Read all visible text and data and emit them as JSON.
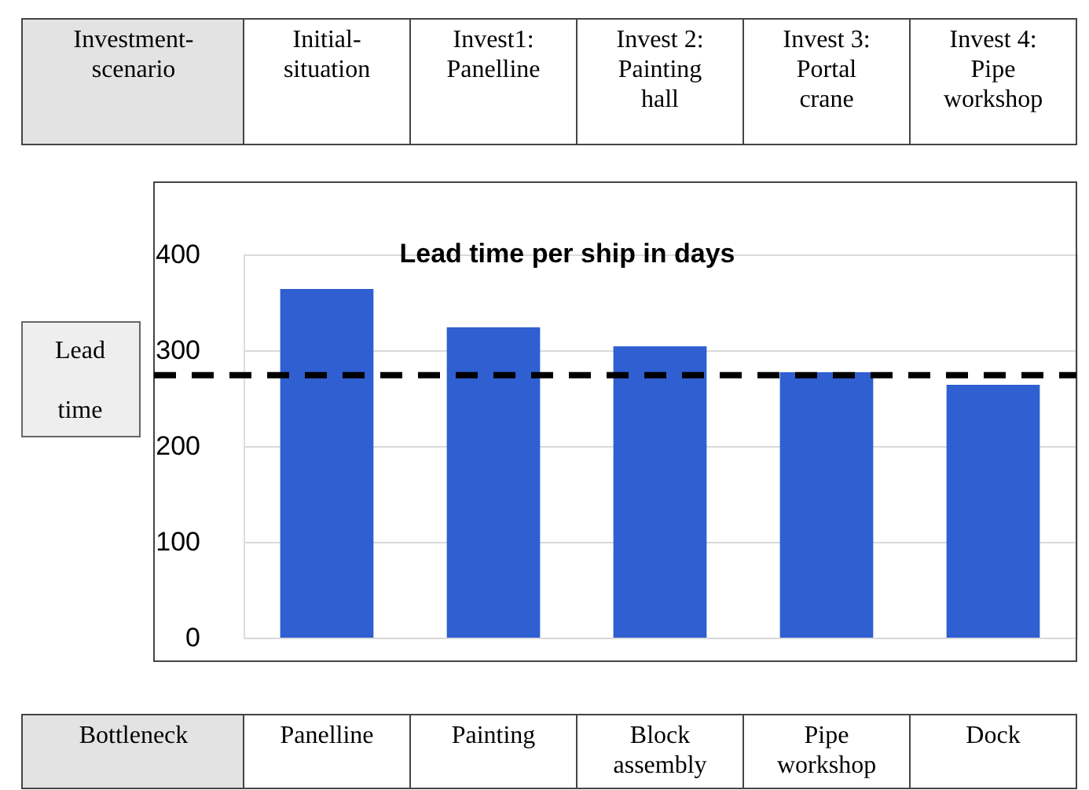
{
  "chart_data": {
    "type": "bar",
    "title": "Lead time per ship in days",
    "xlabel": "Investment-\nscenario",
    "categories": [
      "Initial-\nsituation",
      "Invest1:\nPanelline",
      "Invest 2:\nPainting\nhall",
      "Invest 3:\nPortal\ncrane",
      "Invest 4:\nPipe\nworkshop"
    ],
    "values": [
      364,
      324,
      304,
      277,
      264
    ],
    "color": "#2f5fd0",
    "ylim": [
      0,
      400
    ],
    "yticks": [
      0,
      100,
      200,
      300,
      400
    ],
    "grid": "y",
    "tick_labels": "y",
    "ref_lines": [
      {
        "axis": "y",
        "value": 274,
        "label": "Lead\ntime",
        "color": "#000000",
        "line_style": "dashed"
      }
    ],
    "annotations": [
      "Bottleneck",
      "Panelline",
      "Painting",
      "Block\nassembly",
      "Pipe\nworkshop",
      "Dock"
    ]
  }
}
